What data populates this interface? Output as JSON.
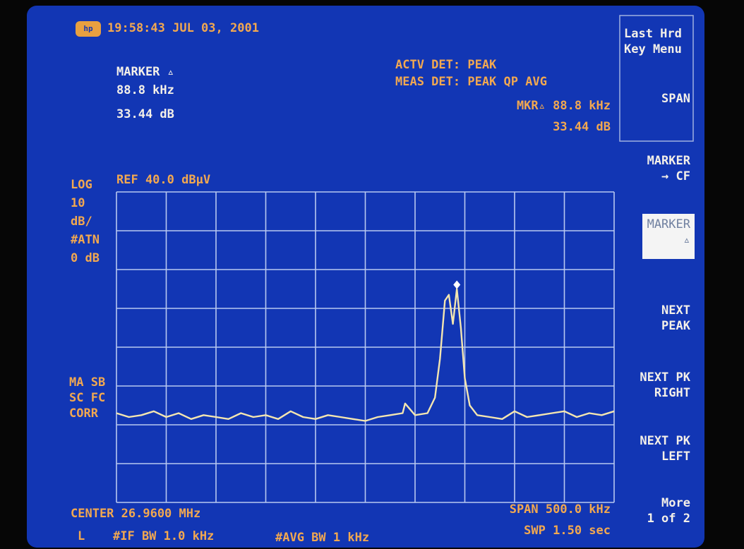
{
  "header": {
    "timestamp": "19:58:43 JUL 03, 2001"
  },
  "marker_box": {
    "title": "MARKER ▵",
    "freq": "88.8 kHz",
    "level": "33.44 dB"
  },
  "detectors": {
    "actv": "ACTV DET: PEAK",
    "meas": "MEAS DET: PEAK QP AVG",
    "mkr_freq": "MKR▵ 88.8 kHz",
    "mkr_level": "33.44 dB"
  },
  "left_labels": [
    "LOG",
    "10",
    "dB/",
    "#ATN",
    "0 dB"
  ],
  "ref": "REF 40.0 dBµV",
  "mode_labels": [
    "MA SB",
    "SC FC",
    "CORR"
  ],
  "footer": {
    "center": "CENTER 26.9600 MHz",
    "span": "SPAN 500.0 kHz",
    "mode": "L",
    "if_bw": "#IF BW 1.0 kHz",
    "avg_bw": "#AVG BW 1 kHz",
    "swp": "SWP 1.50  sec"
  },
  "softkeys": [
    [
      "Last Hrd",
      "Key Menu",
      "SPAN"
    ],
    [
      "MARKER",
      "→ CF"
    ],
    [
      "MARKER",
      "▵"
    ],
    [
      "NEXT",
      "PEAK"
    ],
    [
      "NEXT PK",
      "RIGHT"
    ],
    [
      "NEXT PK",
      "LEFT"
    ],
    [
      "More",
      "1 of 2"
    ]
  ],
  "trace": {
    "xlim": [
      -250,
      250
    ],
    "ylim": [
      -40,
      40
    ],
    "x": [
      -250,
      -237.5,
      -225,
      -212.5,
      -200,
      -187.5,
      -175,
      -162.5,
      -150,
      -137.5,
      -125,
      -112.5,
      -100,
      -87.5,
      -75,
      -62.5,
      -50,
      -37.5,
      -25,
      -12.5,
      0,
      12.5,
      25,
      37.5,
      40,
      50,
      62.5,
      70,
      75,
      80,
      84,
      88,
      92,
      96,
      100,
      105,
      112.5,
      125,
      137.5,
      150,
      162.5,
      175,
      187.5,
      200,
      212.5,
      225,
      237.5,
      250
    ],
    "values": [
      -17,
      -18,
      -17.5,
      -16.5,
      -18,
      -17,
      -18.5,
      -17.5,
      -18,
      -18.5,
      -17,
      -18,
      -17.5,
      -18.5,
      -16.5,
      -18,
      -18.5,
      -17.5,
      -18,
      -18.5,
      -19,
      -18,
      -17.5,
      -17,
      -14.5,
      -17.5,
      -17,
      -13,
      -3,
      12,
      13.5,
      6,
      15,
      5,
      -8,
      -15,
      -17.5,
      -18,
      -18.5,
      -16.5,
      -18,
      -17.5,
      -17,
      -16.5,
      -18,
      -17,
      -17.5,
      -16.5
    ]
  }
}
